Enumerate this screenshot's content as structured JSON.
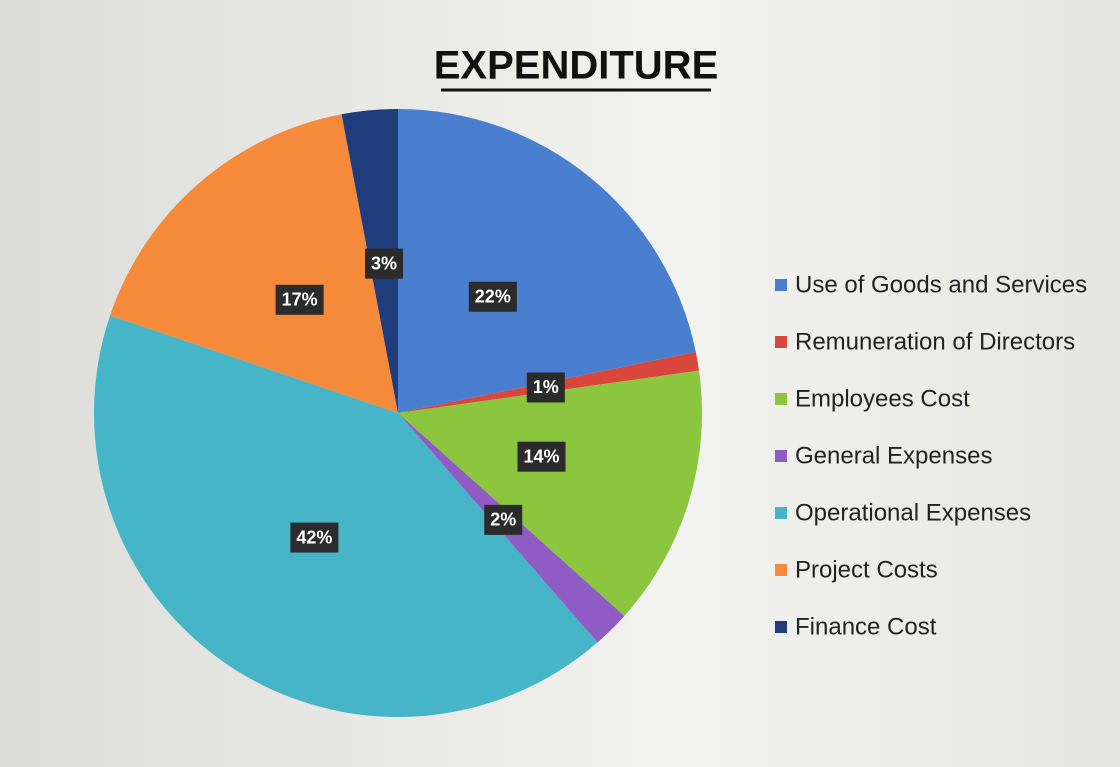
{
  "chart_data": {
    "type": "pie",
    "title": "EXPENDITURE",
    "categories": [
      "Use of Goods and Services",
      "Remuneration of Directors",
      "Employees Cost",
      "General Expenses",
      "Operational Expenses",
      "Project Costs",
      "Finance Cost"
    ],
    "values": [
      22,
      1,
      14,
      2,
      42,
      17,
      3
    ],
    "value_labels": [
      "22%",
      "1%",
      "14%",
      "2%",
      "42%",
      "17%",
      "3%"
    ],
    "colors": [
      "#4a7fd0",
      "#d9463c",
      "#8cc63f",
      "#8e5cc4",
      "#46b5c8",
      "#f58b3a",
      "#1f3d7a"
    ],
    "legend": "right"
  }
}
